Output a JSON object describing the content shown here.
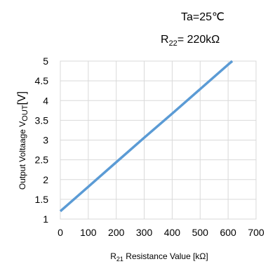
{
  "chart_data": {
    "type": "line",
    "annotations": {
      "temperature": "Ta=25℃",
      "r22_symbol": "R",
      "r22_sub": "22",
      "r22_value": "= 220kΩ"
    },
    "xlabel": {
      "prefix": "R",
      "sub": "21",
      "text": " Resistance Value [kΩ]"
    },
    "ylabel": {
      "prefix": "Output Voltaage V",
      "sub": "OUT",
      "suffix": "[V]"
    },
    "xlim": [
      0,
      700
    ],
    "ylim": [
      1,
      5
    ],
    "xticks": [
      "0",
      "100",
      "200",
      "300",
      "400",
      "500",
      "600",
      "700"
    ],
    "yticks": [
      "1",
      "1.5",
      "2",
      "2.5",
      "3",
      "3.5",
      "4",
      "4.5",
      "5"
    ],
    "grid": true,
    "series": [
      {
        "color": "#5b9bd5",
        "x": [
          0,
          100,
          200,
          300,
          400,
          500,
          600,
          615
        ],
        "y": [
          1.2,
          1.82,
          2.44,
          3.06,
          3.67,
          4.29,
          4.91,
          5.0
        ]
      }
    ]
  }
}
